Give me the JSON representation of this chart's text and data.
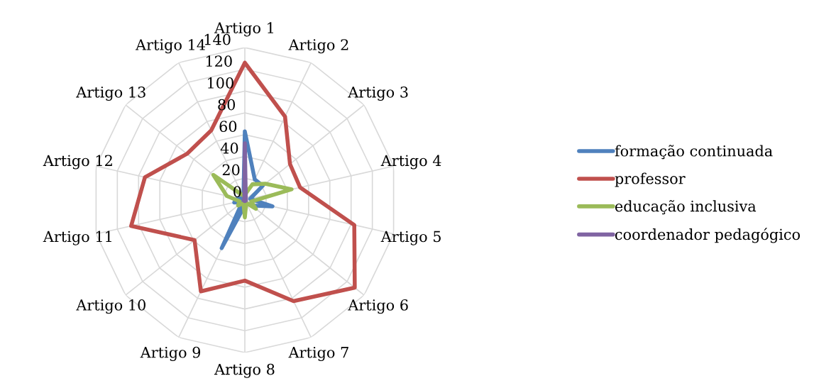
{
  "chart_data": {
    "type": "radar",
    "categories": [
      "Artigo 1",
      "Artigo 2",
      "Artigo 3",
      "Artigo 4",
      "Artigo 5",
      "Artigo 6",
      "Artigo 7",
      "Artigo 8",
      "Artigo 9",
      "Artigo 10",
      "Artigo 11",
      "Artigo 12",
      "Artigo 13",
      "Artigo 14"
    ],
    "ylim": [
      0,
      140
    ],
    "yticks": [
      0,
      20,
      40,
      60,
      80,
      100,
      120,
      140
    ],
    "grid": true,
    "legend": "right",
    "marker": "none",
    "series": [
      {
        "name": "formação continuada",
        "color": "#4f81bd",
        "values": [
          63,
          21,
          21,
          5,
          26,
          8,
          3,
          5,
          49,
          3,
          10,
          7,
          3,
          3
        ]
      },
      {
        "name": "professor",
        "color": "#c0504d",
        "values": [
          126,
          85,
          53,
          52,
          103,
          129,
          103,
          74,
          93,
          59,
          107,
          94,
          68,
          71
        ]
      },
      {
        "name": "educação inclusiva",
        "color": "#9bbb59",
        "values": [
          5,
          16,
          24,
          44,
          6,
          13,
          3,
          16,
          3,
          8,
          5,
          17,
          37,
          5
        ]
      },
      {
        "name": "coordenador pedagógico",
        "color": "#8064a2",
        "values": [
          52,
          2,
          1,
          1,
          1,
          1,
          1,
          1,
          1,
          1,
          1,
          1,
          1,
          1
        ]
      }
    ]
  }
}
